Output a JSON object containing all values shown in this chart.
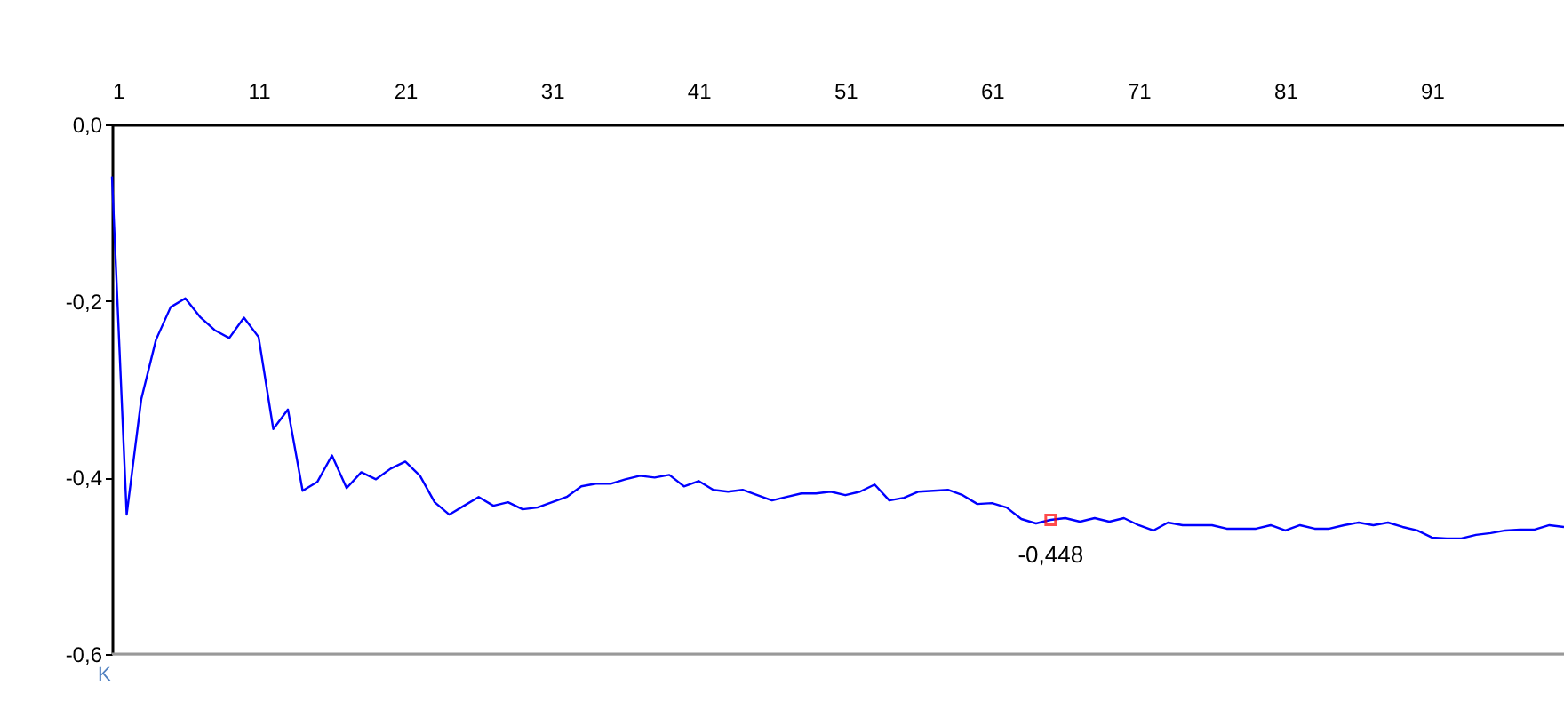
{
  "chart_data": {
    "type": "line",
    "xlabel": "K",
    "x": [
      1,
      2,
      3,
      4,
      5,
      6,
      7,
      8,
      9,
      10,
      11,
      12,
      13,
      14,
      15,
      16,
      17,
      18,
      19,
      20,
      21,
      22,
      23,
      24,
      25,
      26,
      27,
      28,
      29,
      30,
      31,
      32,
      33,
      34,
      35,
      36,
      37,
      38,
      39,
      40,
      41,
      42,
      43,
      44,
      45,
      46,
      47,
      48,
      49,
      50,
      51,
      52,
      53,
      54,
      55,
      56,
      57,
      58,
      59,
      60,
      61,
      62,
      63,
      64,
      65,
      66,
      67,
      68,
      69,
      70,
      71,
      72,
      73,
      74,
      75,
      76,
      77,
      78,
      79,
      80,
      81,
      82,
      83,
      84,
      85,
      86,
      87,
      88,
      89,
      90,
      91,
      92,
      93,
      94,
      95,
      96,
      97,
      98,
      99,
      100
    ],
    "series": [
      {
        "color": "#0000ff",
        "values": [
          -0.059,
          -0.442,
          -0.311,
          -0.244,
          -0.207,
          -0.197,
          -0.218,
          -0.233,
          -0.242,
          -0.219,
          -0.241,
          -0.345,
          -0.323,
          -0.415,
          -0.405,
          -0.375,
          -0.412,
          -0.394,
          -0.402,
          -0.39,
          -0.382,
          -0.398,
          -0.428,
          -0.442,
          -0.432,
          -0.422,
          -0.432,
          -0.428,
          -0.436,
          -0.434,
          -0.428,
          -0.422,
          -0.41,
          -0.407,
          -0.407,
          -0.402,
          -0.398,
          -0.4,
          -0.397,
          -0.41,
          -0.404,
          -0.414,
          -0.416,
          -0.414,
          -0.42,
          -0.426,
          -0.422,
          -0.418,
          -0.418,
          -0.416,
          -0.42,
          -0.416,
          -0.408,
          -0.426,
          -0.423,
          -0.416,
          -0.415,
          -0.414,
          -0.42,
          -0.43,
          -0.429,
          -0.434,
          -0.447,
          -0.452,
          -0.448,
          -0.446,
          -0.45,
          -0.446,
          -0.45,
          -0.446,
          -0.454,
          -0.46,
          -0.451,
          -0.454,
          -0.454,
          -0.454,
          -0.458,
          -0.458,
          -0.458,
          -0.454,
          -0.46,
          -0.454,
          -0.458,
          -0.458,
          -0.454,
          -0.451,
          -0.454,
          -0.451,
          -0.456,
          -0.46,
          -0.468,
          -0.469,
          -0.469,
          -0.465,
          -0.463,
          -0.46,
          -0.459,
          -0.459,
          -0.454,
          -0.456
        ]
      }
    ],
    "xlim": [
      1,
      100
    ],
    "xticks": [
      1,
      11,
      21,
      31,
      41,
      51,
      61,
      71,
      81,
      91
    ],
    "ylim": [
      -0.6,
      0
    ],
    "yticks": [
      {
        "value": 0,
        "label": "0,0"
      },
      {
        "value": -0.2,
        "label": "-0,2"
      },
      {
        "value": -0.4,
        "label": "-0,4"
      },
      {
        "value": -0.6,
        "label": "-0,6"
      }
    ],
    "annotations": [
      {
        "text": "-0,448",
        "x": 65,
        "y": -0.448
      }
    ],
    "marker": "none",
    "line_style": "solid",
    "grid": false
  }
}
